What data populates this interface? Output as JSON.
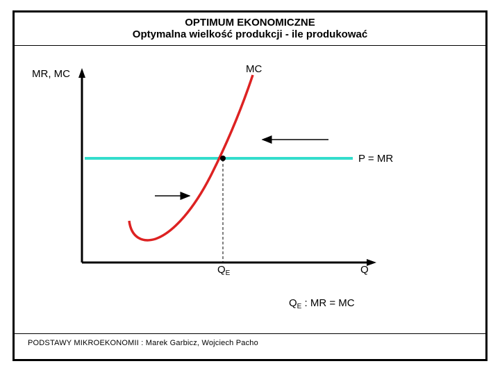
{
  "header": {
    "title": "OPTIMUM EKONOMICZNE",
    "subtitle": "Optymalna wielkość produkcji - ile produkować"
  },
  "diagram": {
    "y_axis_label": "MR, MC",
    "x_axis_label": "Q",
    "mc_label": "MC",
    "mr_label": "P = MR",
    "qe_label_main": "Q",
    "qe_label_sub": "E",
    "condition_main": "Q",
    "condition_sub": "E",
    "condition_rest": ": MR = MC"
  },
  "footer": {
    "text": "PODSTAWY MIKROEKONOMII : Marek Garbicz, Wojciech Pacho"
  },
  "colors": {
    "mc_curve": "#dd2222",
    "mr_line": "#33ddcc",
    "axes": "#000000"
  }
}
